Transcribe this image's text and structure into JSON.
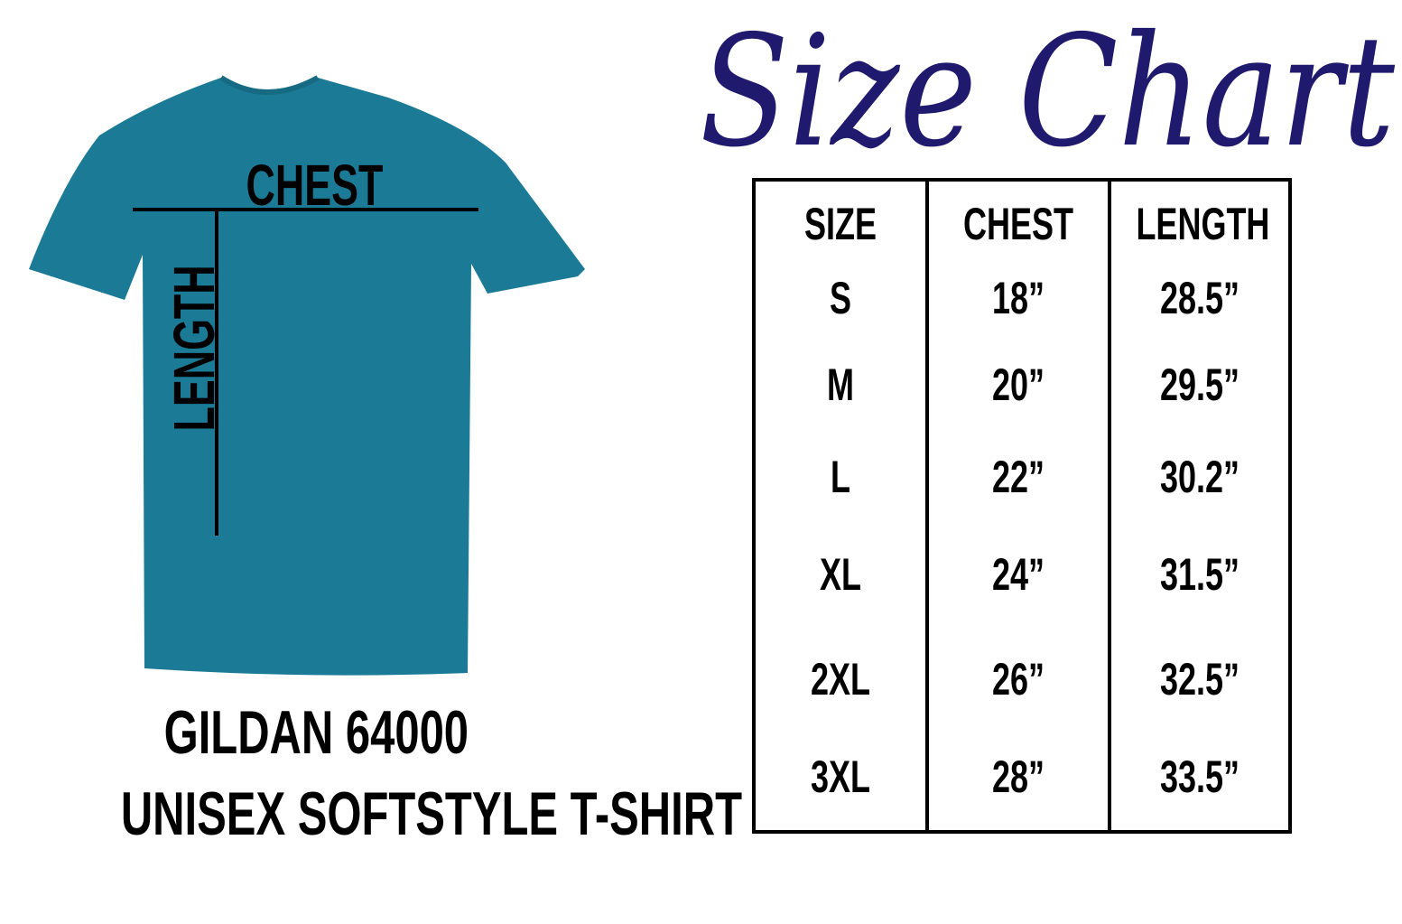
{
  "title": "Size Chart",
  "diagram": {
    "chest_label": "CHEST",
    "length_label": "LENGTH",
    "shirt_color": "#1b7a96"
  },
  "product": {
    "line1": "GILDAN 64000",
    "line2": "UNISEX SOFTSTYLE T-SHIRT"
  },
  "table": {
    "headers": [
      "SIZE",
      "CHEST",
      "LENGTH"
    ],
    "rows": [
      [
        "S",
        "18”",
        "28.5”"
      ],
      [
        "M",
        "20”",
        "29.5”"
      ],
      [
        "L",
        "22”",
        "30.2”"
      ],
      [
        "XL",
        "24”",
        "31.5”"
      ],
      [
        "2XL",
        "26”",
        "32.5”"
      ],
      [
        "3XL",
        "28”",
        "33.5”"
      ]
    ]
  },
  "colors": {
    "title": "#1f1a6e",
    "text": "#000000"
  }
}
